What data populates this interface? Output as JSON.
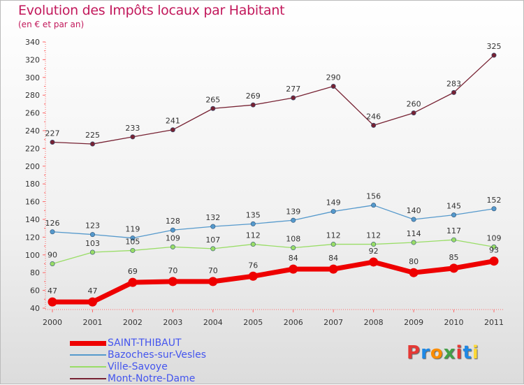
{
  "header": {
    "title": "Evolution des Impôts locaux par Habitant",
    "subtitle": "(en € et par an)"
  },
  "logo": {
    "text": "Proxiti",
    "colors": [
      "#e53935",
      "#1e88e5",
      "#fb8c00",
      "#43a047",
      "#e53935",
      "#1e88e5",
      "#fdd835"
    ]
  },
  "chart_data": {
    "type": "line",
    "title": "Evolution des Impôts locaux par Habitant",
    "subtitle": "(en € et par an)",
    "xlabel": "",
    "ylabel": "",
    "categories": [
      "2000",
      "2001",
      "2002",
      "2003",
      "2004",
      "2005",
      "2006",
      "2007",
      "2008",
      "2009",
      "2010",
      "2011"
    ],
    "ylim": [
      40,
      340
    ],
    "yticks": [
      40,
      60,
      80,
      100,
      120,
      140,
      160,
      180,
      200,
      220,
      240,
      260,
      280,
      300,
      320,
      340
    ],
    "grid": false,
    "legend": "bottom-left",
    "series": [
      {
        "name": "SAINT-THIBAUT",
        "color": "#ee0000",
        "values": [
          47,
          47,
          69,
          70,
          70,
          76,
          84,
          84,
          92,
          80,
          85,
          93
        ]
      },
      {
        "name": "Bazoches-sur-Vesles",
        "color": "#5599cc",
        "values": [
          126,
          123,
          119,
          128,
          132,
          135,
          139,
          149,
          156,
          140,
          145,
          152
        ]
      },
      {
        "name": "Ville-Savoye",
        "color": "#99dd66",
        "values": [
          90,
          103,
          105,
          109,
          107,
          112,
          108,
          112,
          112,
          114,
          117,
          109
        ]
      },
      {
        "name": "Mont-Notre-Dame",
        "color": "#772233",
        "values": [
          227,
          225,
          233,
          241,
          265,
          269,
          277,
          290,
          246,
          260,
          283,
          325
        ]
      }
    ]
  }
}
